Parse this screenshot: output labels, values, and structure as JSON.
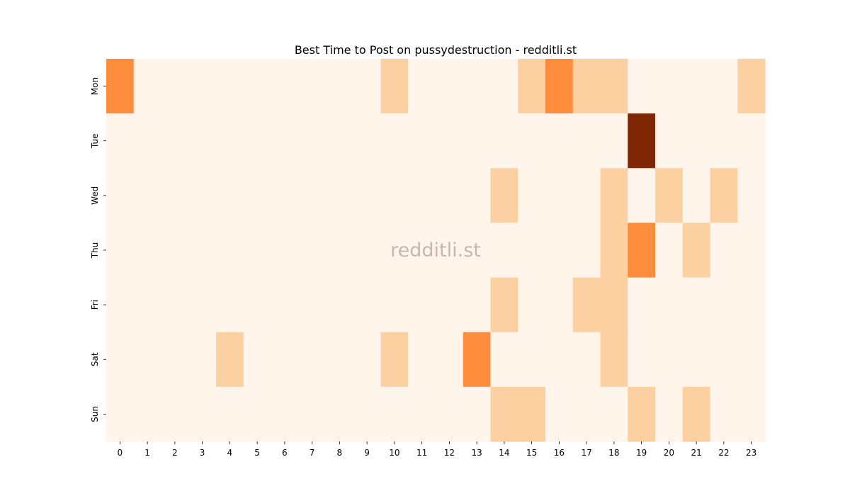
{
  "chart_data": {
    "type": "heatmap",
    "title": "Best Time to Post on pussydestruction - redditli.st",
    "watermark": "redditli.st",
    "x_labels": [
      "0",
      "1",
      "2",
      "3",
      "4",
      "5",
      "6",
      "7",
      "8",
      "9",
      "10",
      "11",
      "12",
      "13",
      "14",
      "15",
      "16",
      "17",
      "18",
      "19",
      "20",
      "21",
      "22",
      "23"
    ],
    "y_labels": [
      "Mon",
      "Tue",
      "Wed",
      "Thu",
      "Fri",
      "Sat",
      "Sun"
    ],
    "values": [
      [
        2,
        0,
        0,
        0,
        0,
        0,
        0,
        0,
        0,
        0,
        1,
        0,
        0,
        0,
        0,
        1,
        2,
        1,
        1,
        0,
        0,
        0,
        0,
        1
      ],
      [
        0,
        0,
        0,
        0,
        0,
        0,
        0,
        0,
        0,
        0,
        0,
        0,
        0,
        0,
        0,
        0,
        0,
        0,
        0,
        4,
        0,
        0,
        0,
        0
      ],
      [
        0,
        0,
        0,
        0,
        0,
        0,
        0,
        0,
        0,
        0,
        0,
        0,
        0,
        0,
        1,
        0,
        0,
        0,
        1,
        0,
        1,
        0,
        1,
        0
      ],
      [
        0,
        0,
        0,
        0,
        0,
        0,
        0,
        0,
        0,
        0,
        0,
        0,
        0,
        0,
        0,
        0,
        0,
        0,
        1,
        2,
        0,
        1,
        0,
        0
      ],
      [
        0,
        0,
        0,
        0,
        0,
        0,
        0,
        0,
        0,
        0,
        0,
        0,
        0,
        0,
        1,
        0,
        0,
        1,
        1,
        0,
        0,
        0,
        0,
        0
      ],
      [
        0,
        0,
        0,
        0,
        1,
        0,
        0,
        0,
        0,
        0,
        1,
        0,
        0,
        2,
        0,
        0,
        0,
        0,
        1,
        0,
        0,
        0,
        0,
        0
      ],
      [
        0,
        0,
        0,
        0,
        0,
        0,
        0,
        0,
        0,
        0,
        0,
        0,
        0,
        0,
        1,
        1,
        0,
        0,
        0,
        1,
        0,
        1,
        0,
        0
      ]
    ],
    "colorscale": [
      "#fff5eb",
      "#fdd0a2",
      "#fd8d3c",
      "#d94801",
      "#7f2704"
    ],
    "colorbar": false,
    "grid": false
  }
}
